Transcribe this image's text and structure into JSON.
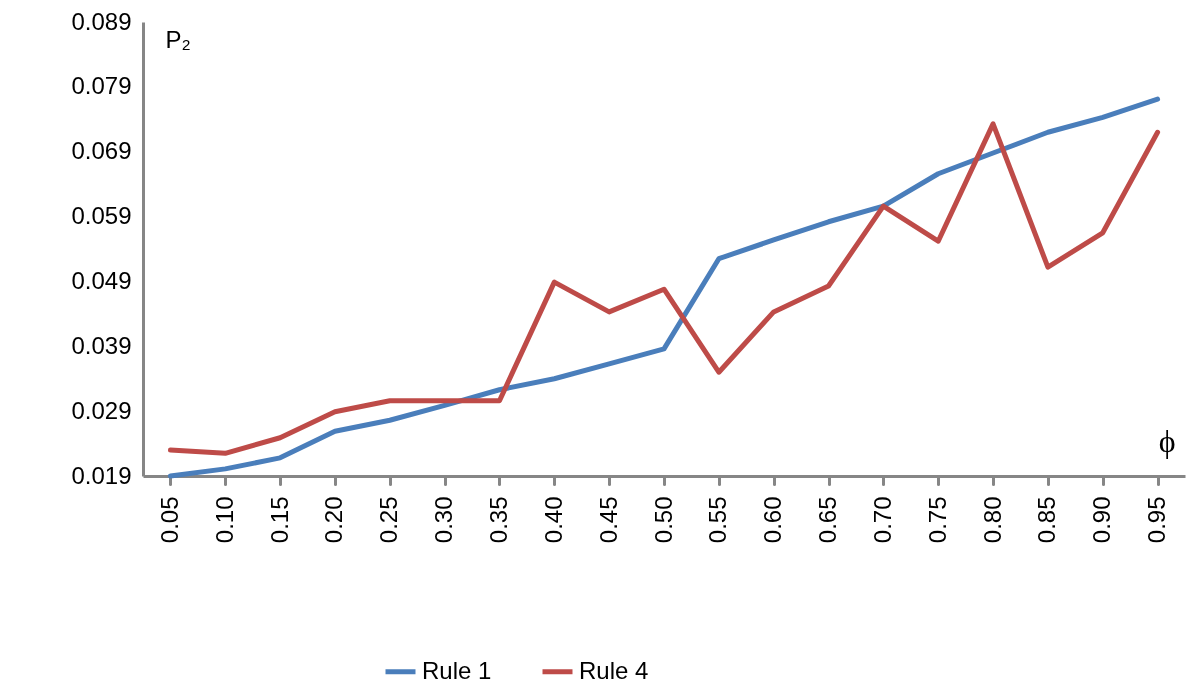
{
  "chart_data": {
    "type": "line",
    "xlabel": "ϕ",
    "ylabel": "P₂",
    "categories": [
      "0.05",
      "0.10",
      "0.15",
      "0.20",
      "0.25",
      "0.30",
      "0.35",
      "0.40",
      "0.45",
      "0.50",
      "0.55",
      "0.60",
      "0.65",
      "0.70",
      "0.75",
      "0.80",
      "0.85",
      "0.90",
      "0.95"
    ],
    "series": [
      {
        "name": "Rule 1",
        "color": "#4a7ebb",
        "values": [
          0.019,
          0.0201,
          0.0218,
          0.0259,
          0.0276,
          0.0299,
          0.0323,
          0.034,
          0.0363,
          0.0386,
          0.0525,
          0.0554,
          0.0582,
          0.0606,
          0.0656,
          0.0688,
          0.072,
          0.0743,
          0.0771
        ]
      },
      {
        "name": "Rule 4",
        "color": "#be4b48",
        "values": [
          0.023,
          0.0225,
          0.0249,
          0.0289,
          0.0306,
          0.0306,
          0.0306,
          0.0489,
          0.0443,
          0.0478,
          0.035,
          0.0443,
          0.0483,
          0.0606,
          0.0552,
          0.0733,
          0.0512,
          0.0565,
          0.072
        ]
      }
    ],
    "ylim": [
      0.019,
      0.089
    ],
    "yticks": [
      0.019,
      0.029,
      0.039,
      0.049,
      0.059,
      0.069,
      0.079,
      0.089
    ],
    "grid": false,
    "legend": "bottom",
    "marker": "none",
    "line_style": "solid"
  }
}
